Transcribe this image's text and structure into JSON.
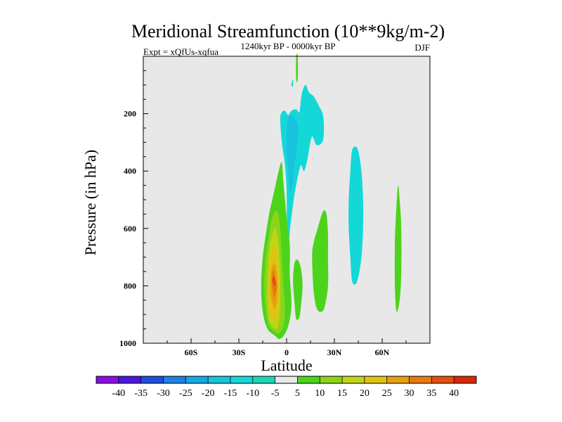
{
  "chart_data": {
    "type": "contour",
    "title": "Meridional Streamfunction (10**9kg/m-2)",
    "subtitle_left": "Expt = xQfUs-xqfua",
    "subtitle_center": "1240kyr BP - 0000kyr BP",
    "subtitle_right": "DJF",
    "xlabel": "Latitude",
    "ylabel": "Pressure (in hPa)",
    "xlim": [
      -90,
      90
    ],
    "ylim": [
      1000,
      0
    ],
    "x_ticks": [
      {
        "value": -60,
        "label": "60S"
      },
      {
        "value": -30,
        "label": "30S"
      },
      {
        "value": 0,
        "label": "0"
      },
      {
        "value": 30,
        "label": "30N"
      },
      {
        "value": 60,
        "label": "60N"
      }
    ],
    "y_ticks": [
      {
        "value": 200,
        "label": "200"
      },
      {
        "value": 400,
        "label": "400"
      },
      {
        "value": 600,
        "label": "600"
      },
      {
        "value": 800,
        "label": "800"
      },
      {
        "value": 1000,
        "label": "1000"
      }
    ],
    "background_color": "#e8e8e8",
    "colorbar": {
      "labels": [
        "-40",
        "-35",
        "-30",
        "-25",
        "-20",
        "-15",
        "-10",
        "-5",
        "5",
        "10",
        "15",
        "20",
        "25",
        "30",
        "35",
        "40"
      ],
      "colors": [
        "#8a0ee0",
        "#4a18dc",
        "#1f4ee0",
        "#1e80e6",
        "#18a8e0",
        "#18c4dc",
        "#14d8d8",
        "#1ad6b4",
        "#e8e8e8",
        "#4cd41c",
        "#8cd41a",
        "#c0d418",
        "#e0c412",
        "#e6a010",
        "#e67a10",
        "#e25010",
        "#d82808"
      ]
    },
    "regions": [
      {
        "level": -10,
        "color": "#14d8d8",
        "points": [
          [
            -2,
            790
          ],
          [
            -1,
            700
          ],
          [
            0,
            600
          ],
          [
            0,
            470
          ],
          [
            -1,
            380
          ],
          [
            -3,
            300
          ],
          [
            -4,
            220
          ],
          [
            -3,
            195
          ],
          [
            -1,
            190
          ],
          [
            1,
            205
          ],
          [
            3,
            190
          ],
          [
            6,
            185
          ],
          [
            8,
            195
          ],
          [
            9,
            150
          ],
          [
            10,
            120
          ],
          [
            12,
            100
          ],
          [
            14,
            125
          ],
          [
            17,
            140
          ],
          [
            20,
            170
          ],
          [
            23,
            210
          ],
          [
            23,
            290
          ],
          [
            19,
            310
          ],
          [
            16,
            280
          ],
          [
            14,
            330
          ],
          [
            13,
            360
          ],
          [
            11,
            400
          ],
          [
            9,
            380
          ],
          [
            7,
            420
          ],
          [
            5,
            480
          ],
          [
            4,
            520
          ],
          [
            2,
            610
          ],
          [
            1,
            700
          ]
        ]
      },
      {
        "level": -15,
        "color": "#18c4dc",
        "points": [
          [
            2,
            470
          ],
          [
            1,
            400
          ],
          [
            0,
            330
          ],
          [
            0,
            260
          ],
          [
            1,
            215
          ],
          [
            3,
            205
          ],
          [
            5,
            215
          ],
          [
            7,
            240
          ],
          [
            7,
            300
          ],
          [
            5,
            380
          ],
          [
            4,
            440
          ]
        ]
      },
      {
        "level": -10,
        "color": "#14d8d8",
        "points": [
          [
            41,
            780
          ],
          [
            40,
            700
          ],
          [
            39,
            600
          ],
          [
            39,
            500
          ],
          [
            40,
            400
          ],
          [
            41,
            330
          ],
          [
            43,
            315
          ],
          [
            45,
            330
          ],
          [
            47,
            400
          ],
          [
            48,
            500
          ],
          [
            48,
            600
          ],
          [
            47,
            700
          ],
          [
            45,
            770
          ],
          [
            43,
            795
          ]
        ]
      },
      {
        "level": -10,
        "color": "#14d8d8",
        "points": [
          [
            3,
            100
          ],
          [
            4,
            80
          ],
          [
            4,
            105
          ]
        ]
      },
      {
        "level": 5,
        "color": "#4cd41c",
        "points": [
          [
            -7,
            975
          ],
          [
            -12,
            950
          ],
          [
            -15,
            890
          ],
          [
            -16,
            800
          ],
          [
            -15,
            700
          ],
          [
            -13,
            620
          ],
          [
            -11,
            550
          ],
          [
            -9,
            500
          ],
          [
            -7,
            450
          ],
          [
            -5,
            400
          ],
          [
            -3,
            370
          ],
          [
            -2,
            440
          ],
          [
            0,
            560
          ],
          [
            2,
            660
          ],
          [
            2,
            760
          ],
          [
            3,
            870
          ],
          [
            1,
            940
          ],
          [
            -2,
            975
          ],
          [
            -5,
            985
          ]
        ]
      },
      {
        "level": 5,
        "color": "#4cd41c",
        "points": [
          [
            6,
            915
          ],
          [
            5,
            860
          ],
          [
            4,
            780
          ],
          [
            5,
            720
          ],
          [
            7,
            710
          ],
          [
            9,
            740
          ],
          [
            10,
            800
          ],
          [
            9,
            870
          ],
          [
            8,
            910
          ]
        ]
      },
      {
        "level": 5,
        "color": "#4cd41c",
        "points": [
          [
            19,
            880
          ],
          [
            17,
            820
          ],
          [
            16,
            700
          ],
          [
            17,
            650
          ],
          [
            20,
            590
          ],
          [
            23,
            540
          ],
          [
            25,
            550
          ],
          [
            26,
            620
          ],
          [
            26,
            700
          ],
          [
            26,
            800
          ],
          [
            24,
            870
          ],
          [
            22,
            890
          ]
        ]
      },
      {
        "level": 5,
        "color": "#4cd41c",
        "points": [
          [
            69,
            890
          ],
          [
            68,
            800
          ],
          [
            68,
            650
          ],
          [
            69,
            520
          ],
          [
            70,
            450
          ],
          [
            71,
            500
          ],
          [
            72,
            600
          ],
          [
            72,
            750
          ],
          [
            71,
            850
          ]
        ]
      },
      {
        "level": 5,
        "color": "#4cd41c",
        "points": [
          [
            6,
            80
          ],
          [
            6,
            0
          ],
          [
            7,
            0
          ],
          [
            7,
            80
          ]
        ]
      },
      {
        "level": 10,
        "color": "#8cd41a",
        "points": [
          [
            -6,
            965
          ],
          [
            -11,
            940
          ],
          [
            -13,
            880
          ],
          [
            -14,
            800
          ],
          [
            -13,
            700
          ],
          [
            -11,
            620
          ],
          [
            -9,
            560
          ],
          [
            -6,
            540
          ],
          [
            -4,
            600
          ],
          [
            -3,
            700
          ],
          [
            -2,
            800
          ],
          [
            -1,
            880
          ],
          [
            -2,
            940
          ],
          [
            -4,
            960
          ]
        ]
      },
      {
        "level": 15,
        "color": "#c0d418",
        "points": [
          [
            -7,
            950
          ],
          [
            -11,
            920
          ],
          [
            -12,
            850
          ],
          [
            -12,
            760
          ],
          [
            -11,
            680
          ],
          [
            -9,
            620
          ],
          [
            -7,
            600
          ],
          [
            -5,
            660
          ],
          [
            -4,
            760
          ],
          [
            -4,
            860
          ],
          [
            -5,
            930
          ]
        ]
      },
      {
        "level": 20,
        "color": "#e0c412",
        "points": [
          [
            -8,
            920
          ],
          [
            -11,
            880
          ],
          [
            -11,
            780
          ],
          [
            -10,
            700
          ],
          [
            -8,
            660
          ],
          [
            -6,
            700
          ],
          [
            -5,
            780
          ],
          [
            -5,
            870
          ],
          [
            -6,
            910
          ]
        ]
      },
      {
        "level": 25,
        "color": "#e6a010",
        "points": [
          [
            -8,
            880
          ],
          [
            -10,
            830
          ],
          [
            -10,
            760
          ],
          [
            -8,
            720
          ],
          [
            -6,
            760
          ],
          [
            -6,
            840
          ],
          [
            -7,
            875
          ]
        ]
      },
      {
        "level": 30,
        "color": "#e67a10",
        "points": [
          [
            -8,
            840
          ],
          [
            -9,
            800
          ],
          [
            -9,
            760
          ],
          [
            -8,
            745
          ],
          [
            -7,
            775
          ],
          [
            -6,
            800
          ],
          [
            -7,
            830
          ]
        ]
      },
      {
        "level": 35,
        "color": "#e25010",
        "points": [
          [
            -8,
            800
          ],
          [
            -9,
            780
          ],
          [
            -8,
            765
          ],
          [
            -7,
            780
          ],
          [
            -7,
            795
          ]
        ]
      }
    ]
  }
}
